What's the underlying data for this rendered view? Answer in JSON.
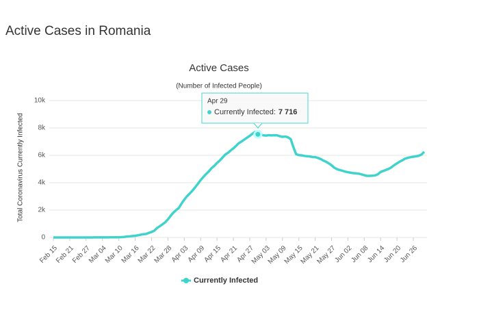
{
  "header": {
    "title": "Active Cases in Romania"
  },
  "chart_data": {
    "type": "line",
    "title": "Active Cases",
    "subtitle": "(Number of Infected People)",
    "y_label": "Total Coronavirus Currently Infected",
    "categories": [
      "Feb 15",
      null,
      null,
      null,
      null,
      null,
      "Feb 21",
      null,
      null,
      null,
      null,
      null,
      "Feb 27",
      null,
      null,
      null,
      null,
      null,
      "Mar 04",
      null,
      null,
      null,
      null,
      null,
      "Mar 10",
      null,
      null,
      null,
      null,
      null,
      "Mar 16",
      null,
      null,
      null,
      null,
      null,
      "Mar 22",
      null,
      null,
      null,
      null,
      null,
      "Mar 28",
      null,
      null,
      null,
      null,
      null,
      "Apr 03",
      null,
      null,
      null,
      null,
      null,
      "Apr 09",
      null,
      null,
      null,
      null,
      null,
      "Apr 15",
      null,
      null,
      null,
      null,
      null,
      "Apr 21",
      null,
      null,
      null,
      null,
      null,
      "Apr 27",
      null,
      null,
      null,
      null,
      null,
      "May 03",
      null,
      null,
      null,
      null,
      null,
      "May 09",
      null,
      null,
      null,
      null,
      null,
      "May 15",
      null,
      null,
      null,
      null,
      null,
      "May 21",
      null,
      null,
      null,
      null,
      null,
      "May 27",
      null,
      null,
      null,
      null,
      null,
      "Jun 02",
      null,
      null,
      null,
      null,
      null,
      "Jun 08",
      null,
      null,
      null,
      null,
      null,
      "Jun 14",
      null,
      null,
      null,
      null,
      null,
      "Jun 20",
      null,
      null,
      null,
      null,
      null,
      "Jun 26",
      null,
      null,
      null,
      null
    ],
    "series": [
      {
        "name": "Currently Infected",
        "color": "#3fd3cc",
        "values": [
          0,
          0,
          0,
          0,
          0,
          0,
          0,
          0,
          0,
          0,
          0,
          0,
          0,
          0,
          0,
          3,
          3,
          3,
          4,
          4,
          6,
          8,
          12,
          13,
          19,
          24,
          42,
          70,
          78,
          107,
          123,
          155,
          199,
          234,
          253,
          335,
          398,
          497,
          692,
          814,
          959,
          1110,
          1318,
          1586,
          1817,
          1993,
          2156,
          2475,
          2761,
          3015,
          3209,
          3431,
          3664,
          3920,
          4191,
          4420,
          4633,
          4830,
          5065,
          5232,
          5440,
          5617,
          5834,
          6051,
          6186,
          6351,
          6508,
          6688,
          6892,
          7011,
          7151,
          7292,
          7420,
          7582,
          7716,
          7536,
          7509,
          7463,
          7443,
          7476,
          7457,
          7470,
          7463,
          7398,
          7352,
          7377,
          7318,
          7194,
          6611,
          6090,
          6012,
          5998,
          5960,
          5934,
          5918,
          5875,
          5872,
          5812,
          5737,
          5620,
          5530,
          5410,
          5273,
          5098,
          4990,
          4930,
          4877,
          4811,
          4770,
          4732,
          4700,
          4686,
          4660,
          4612,
          4548,
          4502,
          4500,
          4512,
          4535,
          4620,
          4783,
          4860,
          4940,
          5015,
          5130,
          5291,
          5410,
          5538,
          5640,
          5760,
          5820,
          5866,
          5900,
          5930,
          5970,
          6060,
          6258
        ]
      }
    ],
    "ylim": [
      0,
      10000
    ],
    "yticks": [
      0,
      {
        "value": 2000,
        "label": "2k"
      },
      {
        "value": 4000,
        "label": "4k"
      },
      {
        "value": 6000,
        "label": "6k"
      },
      {
        "value": 8000,
        "label": "8k"
      },
      {
        "value": 10000,
        "label": "10k"
      }
    ],
    "grid": true,
    "tooltip": {
      "date": "Apr 29",
      "name": "Currently Infected:",
      "value": "7 716"
    }
  }
}
